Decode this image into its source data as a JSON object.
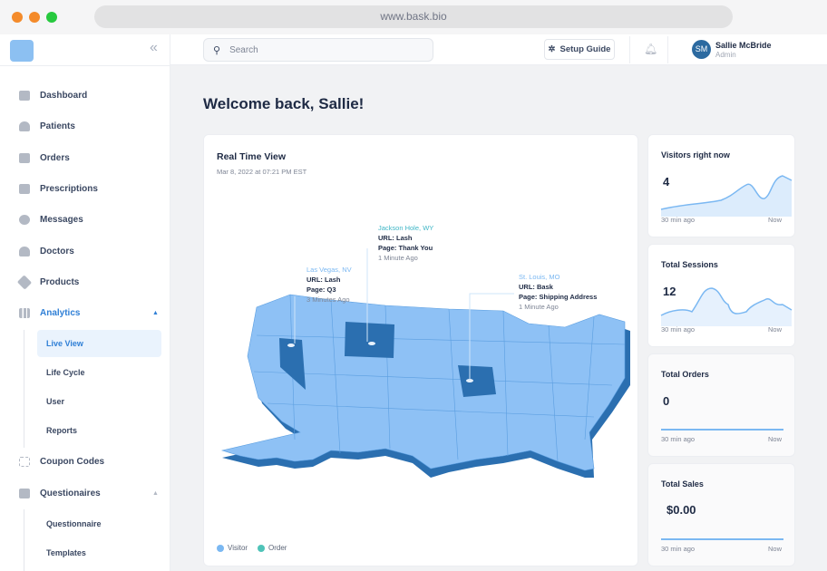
{
  "browser": {
    "url": "www.bask.bio"
  },
  "sidebar": {
    "items": [
      {
        "label": "Dashboard"
      },
      {
        "label": "Patients"
      },
      {
        "label": "Orders"
      },
      {
        "label": "Prescriptions"
      },
      {
        "label": "Messages"
      },
      {
        "label": "Doctors"
      },
      {
        "label": "Products"
      },
      {
        "label": "Analytics"
      },
      {
        "label": "Coupon Codes"
      },
      {
        "label": "Questionaires"
      }
    ],
    "analytics_sub": [
      {
        "label": "Live View"
      },
      {
        "label": "Life Cycle"
      },
      {
        "label": "User"
      },
      {
        "label": "Reports"
      }
    ],
    "questionaires_sub": [
      {
        "label": "Questionnaire"
      },
      {
        "label": "Templates"
      }
    ]
  },
  "header": {
    "search_placeholder": "Search",
    "setup_guide": "Setup Guide",
    "user": {
      "initials": "SM",
      "name": "Sallie McBride",
      "role": "Admin"
    }
  },
  "main": {
    "welcome": "Welcome back, Sallie!",
    "realtime": {
      "title": "Real Time View",
      "timestamp": "Mar 8, 2022 at 07:21 PM EST",
      "annotations": [
        {
          "city": "Las Vegas, NV",
          "url": "URL: Lash",
          "page": "Page: Q3",
          "ago": "3 Minutes Ago"
        },
        {
          "city": "Jackson Hole, WY",
          "url": "URL: Lash",
          "page": "Page: Thank You",
          "ago": "1 Minute Ago"
        },
        {
          "city": "St. Louis, MO",
          "url": "URL: Bask",
          "page": "Page: Shipping Address",
          "ago": "1 Minute Ago"
        }
      ],
      "legend": [
        {
          "label": "Visitor",
          "color": "#7bb8f2"
        },
        {
          "label": "Order",
          "color": "#4fc3b8"
        }
      ]
    },
    "stats": [
      {
        "title": "Visitors right now",
        "value": "4",
        "from": "30 min ago",
        "to": "Now"
      },
      {
        "title": "Total Sessions",
        "value": "12",
        "from": "30 min ago",
        "to": "Now"
      },
      {
        "title": "Total Orders",
        "value": "0",
        "from": "30 min ago",
        "to": "Now"
      },
      {
        "title": "Total Sales",
        "value": "$0.00",
        "from": "30 min ago",
        "to": "Now"
      }
    ]
  },
  "colors": {
    "accent": "#2f7fd6",
    "map": "#8ec1f5",
    "map_dark": "#2b6fb0"
  }
}
